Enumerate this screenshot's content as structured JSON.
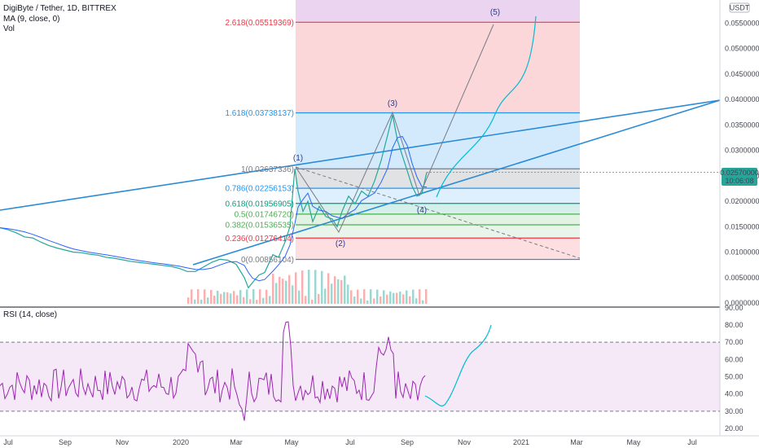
{
  "header": {
    "symbol": "DigiByte / Tether, 1D, BITTREX",
    "ma": "MA (9, close, 0)",
    "vol": "Vol",
    "currency": "USDT"
  },
  "price_badge": {
    "price": "0.02570000",
    "countdown": "10:06:08"
  },
  "rsi_header": "RSI (14, close)",
  "colors": {
    "fib_blue_line": "#2196f3",
    "rsi": "#9c27b0",
    "projection": "#00bcd4",
    "trend": "#2a8bd6"
  },
  "chart_data": [
    {
      "type": "line",
      "name": "price_panel",
      "y_ticks": [
        "0.05500000",
        "0.05000000",
        "0.04500000",
        "0.04000000",
        "0.03500000",
        "0.03000000",
        "0.02500000",
        "0.02000000",
        "0.01500000",
        "0.01000000",
        "0.00500000",
        "0.00000000"
      ],
      "y_values": [
        0.055,
        0.05,
        0.045,
        0.04,
        0.035,
        0.03,
        0.025,
        0.02,
        0.015,
        0.01,
        0.005,
        0.0
      ],
      "ylim": [
        0,
        0.058
      ],
      "fib_levels": [
        {
          "label": "2.618(0.05519369)",
          "value": 0.05519369,
          "color": "#f23645"
        },
        {
          "label": "1.618(0.03738137)",
          "value": 0.03738137,
          "color": "#2196f3"
        },
        {
          "label": "1(0.02637336)",
          "value": 0.02637336,
          "color": "#787b86"
        },
        {
          "label": "0.786(0.02256153)",
          "value": 0.02256153,
          "color": "#2196f3"
        },
        {
          "label": "0.618(0.01956905)",
          "value": 0.01956905,
          "color": "#089981"
        },
        {
          "label": "0.5(0.01746720)",
          "value": 0.0174672,
          "color": "#4caf50"
        },
        {
          "label": "0.382(0.01536535)",
          "value": 0.01536535,
          "color": "#4caf50"
        },
        {
          "label": "0.236(0.01276414)",
          "value": 0.01276414,
          "color": "#f23645"
        },
        {
          "label": "0(0.00856104)",
          "value": 0.00856104,
          "color": "#787b86"
        }
      ],
      "wave_labels": [
        "(1)",
        "(2)",
        "(3)",
        "(4)",
        "(5)"
      ],
      "x_ticks": [
        "Jul",
        "Sep",
        "Nov",
        "2020",
        "Mar",
        "May",
        "Jul",
        "Sep",
        "Nov",
        "2021",
        "Mar",
        "May",
        "Jul"
      ]
    },
    {
      "type": "line",
      "name": "rsi_panel",
      "y_ticks": [
        "90.00",
        "80.00",
        "70.00",
        "60.00",
        "50.00",
        "40.00",
        "30.00",
        "20.00"
      ],
      "y_values": [
        90,
        80,
        70,
        60,
        50,
        40,
        30,
        20
      ],
      "band": [
        30,
        70
      ]
    }
  ]
}
